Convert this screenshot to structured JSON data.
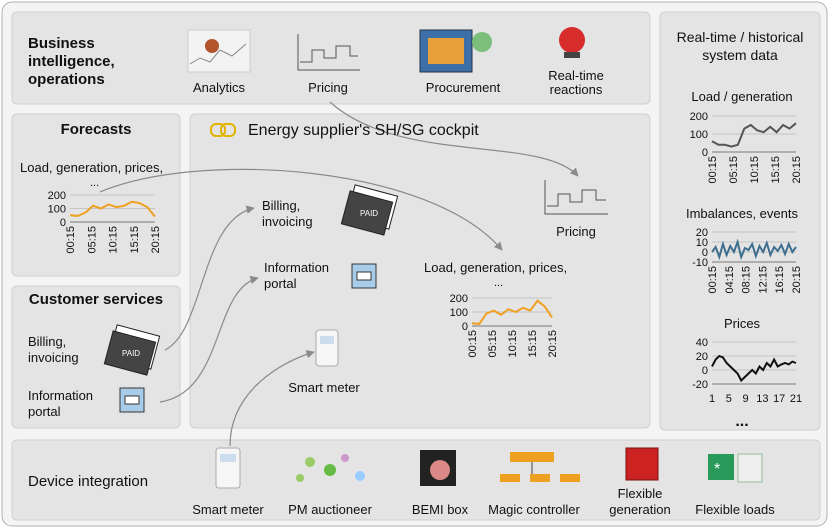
{
  "top": {
    "title": [
      "Business",
      "intelligence,",
      "operations"
    ],
    "items": [
      {
        "label": [
          "Analytics"
        ]
      },
      {
        "label": [
          "Pricing"
        ]
      },
      {
        "label": [
          "Procurement"
        ]
      },
      {
        "label": [
          "Real-time",
          "reactions"
        ]
      }
    ]
  },
  "forecasts": {
    "title": "Forecasts",
    "chart": {
      "title": "Load, generation, prices,",
      "subtitle": "...",
      "ylim": [
        0,
        200
      ],
      "yticks": [
        0,
        100,
        200
      ],
      "xlabels": [
        "00:15",
        "05:15",
        "10:15",
        "15:15",
        "20:15"
      ],
      "values": [
        50,
        45,
        70,
        120,
        100,
        130,
        110,
        120,
        150,
        140,
        110,
        40
      ],
      "color": "#f0a020"
    }
  },
  "customer_services": {
    "title": "Customer services",
    "items": [
      {
        "label": [
          "Billing,",
          "invoicing"
        ]
      },
      {
        "label": [
          "Information",
          "portal"
        ]
      }
    ]
  },
  "cockpit": {
    "title": "Energy supplier's SH/SG cockpit",
    "items": [
      {
        "label": [
          "Billing,",
          "invoicing"
        ]
      },
      {
        "label": [
          "Information",
          "portal"
        ]
      },
      {
        "label": [
          "Pricing"
        ]
      },
      {
        "label": [
          "Smart meter"
        ]
      }
    ],
    "chart": {
      "title": "Load, generation, prices,",
      "subtitle": "...",
      "ylim": [
        0,
        200
      ],
      "yticks": [
        0,
        100,
        200
      ],
      "xlabels": [
        "00:15",
        "05:15",
        "10:15",
        "15:15",
        "20:15"
      ],
      "values": [
        20,
        15,
        90,
        110,
        80,
        120,
        100,
        130,
        110,
        180,
        140,
        60
      ],
      "color": "#f0a020"
    }
  },
  "system_data": {
    "title": [
      "Real-time / historical",
      "system data"
    ],
    "charts": [
      {
        "title": "Load / generation",
        "ylim": [
          0,
          200
        ],
        "yticks": [
          0,
          100,
          200
        ],
        "xlabels": [
          "00:15",
          "05:15",
          "10:15",
          "15:15",
          "20:15"
        ],
        "values": [
          60,
          40,
          40,
          30,
          40,
          130,
          150,
          120,
          110,
          140,
          110,
          150,
          130,
          160
        ],
        "color": "#555555"
      },
      {
        "title": "Imbalances, events",
        "ylim": [
          -10,
          20
        ],
        "yticks": [
          -10,
          0,
          10,
          20
        ],
        "xlabels": [
          "00:15",
          "04:15",
          "08:15",
          "12:15",
          "16:15",
          "20:15"
        ],
        "values": [
          0,
          5,
          -5,
          8,
          -3,
          6,
          0,
          10,
          -5,
          4,
          2,
          8,
          -4,
          6,
          0,
          9,
          -3,
          5,
          1,
          7,
          -2,
          8,
          0,
          5
        ],
        "color": "#3f6f8f"
      },
      {
        "title": "Prices",
        "ylim": [
          -20,
          40
        ],
        "yticks": [
          -20,
          0,
          20,
          40
        ],
        "xlabels": [
          "1",
          "5",
          "9",
          "13",
          "17",
          "21"
        ],
        "values": [
          5,
          15,
          20,
          18,
          10,
          5,
          0,
          -5,
          -15,
          -10,
          -5,
          0,
          -5,
          5,
          0,
          10,
          5,
          15,
          5,
          8,
          10,
          8,
          12,
          10
        ],
        "color": "#111111"
      }
    ],
    "more": "..."
  },
  "devices": {
    "title": "Device integration",
    "items": [
      {
        "label": [
          "Smart meter"
        ]
      },
      {
        "label": [
          "PM auctioneer"
        ]
      },
      {
        "label": [
          "BEMI box"
        ]
      },
      {
        "label": [
          "Magic controller"
        ]
      },
      {
        "label": [
          "Flexible",
          "generation"
        ]
      },
      {
        "label": [
          "Flexible loads"
        ]
      }
    ]
  }
}
